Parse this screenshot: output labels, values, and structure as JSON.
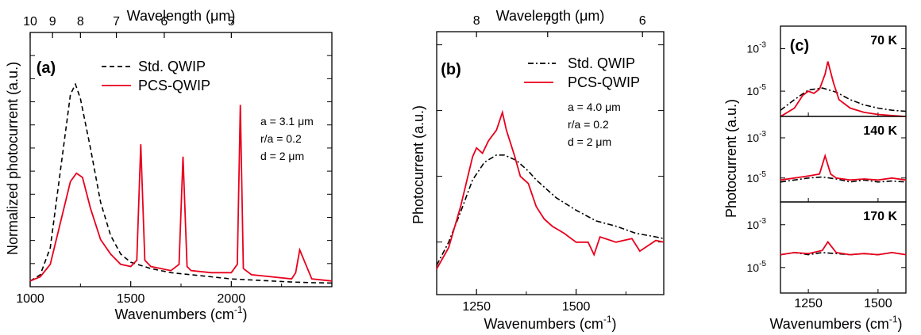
{
  "chart_data": [
    {
      "id": "a",
      "type": "line",
      "panel_label": "(a)",
      "xlabel": "Wavenumbers (cm",
      "xlabel_sup": "-1",
      "xlabel_close": ")",
      "ylabel": "Normalized photocurrent (a.u.)",
      "top_axis_label": "Wavelength (μm)",
      "xlim": [
        1000,
        2500
      ],
      "ylim": [
        0,
        1
      ],
      "x_ticks": [
        1000,
        1500,
        2000
      ],
      "x_tick_labels": [
        "1000",
        "1500",
        "2000"
      ],
      "top_ticks_um": [
        10,
        9,
        8,
        7,
        6,
        5
      ],
      "top_tick_labels": [
        "10",
        "9",
        "8",
        "7",
        "6",
        "5"
      ],
      "legend": [
        "Std. QWIP",
        "PCS-QWIP"
      ],
      "annotations": [
        "a = 3.1 μm",
        "r/a = 0.2",
        "d = 2 μm"
      ],
      "series": [
        {
          "name": "Std. QWIP",
          "style": "dashed",
          "color": "#000000",
          "x": [
            1000,
            1050,
            1100,
            1150,
            1200,
            1225,
            1250,
            1300,
            1350,
            1400,
            1450,
            1500,
            1600,
            1700,
            1800,
            1900,
            2000,
            2100,
            2200,
            2300,
            2400,
            2500
          ],
          "y": [
            0.02,
            0.05,
            0.18,
            0.55,
            0.92,
            0.97,
            0.9,
            0.66,
            0.4,
            0.24,
            0.15,
            0.11,
            0.08,
            0.06,
            0.05,
            0.04,
            0.03,
            0.025,
            0.02,
            0.015,
            0.012,
            0.01
          ]
        },
        {
          "name": "PCS-QWIP",
          "style": "solid",
          "color": "#e8001c",
          "x": [
            1000,
            1050,
            1100,
            1150,
            1200,
            1230,
            1260,
            1300,
            1350,
            1400,
            1450,
            1500,
            1530,
            1550,
            1570,
            1600,
            1700,
            1740,
            1760,
            1780,
            1800,
            1900,
            2000,
            2030,
            2045,
            2060,
            2100,
            2200,
            2300,
            2320,
            2340,
            2400,
            2500
          ],
          "y": [
            0.02,
            0.04,
            0.1,
            0.3,
            0.5,
            0.54,
            0.52,
            0.37,
            0.22,
            0.15,
            0.1,
            0.09,
            0.12,
            0.68,
            0.12,
            0.09,
            0.07,
            0.1,
            0.62,
            0.09,
            0.07,
            0.06,
            0.06,
            0.1,
            0.87,
            0.08,
            0.05,
            0.04,
            0.03,
            0.06,
            0.17,
            0.03,
            0.02
          ]
        }
      ]
    },
    {
      "id": "b",
      "type": "line",
      "panel_label": "(b)",
      "xlabel": "Wavenumbers (cm",
      "xlabel_sup": "-1",
      "xlabel_close": ")",
      "ylabel": "Photocurrent (a.u.)",
      "top_axis_label": "Wavelength (μm)",
      "xlim": [
        1150,
        1720
      ],
      "y_scale": "log",
      "x_ticks": [
        1250,
        1500
      ],
      "x_tick_labels": [
        "1250",
        "1500"
      ],
      "top_ticks_um": [
        8,
        7,
        6
      ],
      "top_tick_labels": [
        "8",
        "7",
        "6"
      ],
      "legend": [
        "Std. QWIP",
        "PCS-QWIP"
      ],
      "annotations": [
        "a = 4.0 μm",
        "r/a = 0.2",
        "d = 2 μm"
      ],
      "series": [
        {
          "name": "Std. QWIP",
          "style": "dashdot",
          "color": "#000000",
          "x": [
            1150,
            1180,
            1210,
            1240,
            1270,
            1300,
            1320,
            1350,
            1380,
            1400,
            1450,
            1500,
            1550,
            1600,
            1650,
            1700,
            1720
          ],
          "y": [
            0.12,
            0.25,
            0.42,
            0.6,
            0.7,
            0.74,
            0.74,
            0.71,
            0.65,
            0.6,
            0.5,
            0.43,
            0.37,
            0.34,
            0.3,
            0.28,
            0.27
          ]
        },
        {
          "name": "PCS-QWIP",
          "style": "solid",
          "color": "#e8001c",
          "x": [
            1150,
            1180,
            1210,
            1240,
            1250,
            1265,
            1280,
            1300,
            1315,
            1325,
            1345,
            1360,
            1380,
            1400,
            1420,
            1440,
            1470,
            1500,
            1530,
            1545,
            1560,
            1600,
            1640,
            1660,
            1700,
            1720
          ],
          "y": [
            0.1,
            0.22,
            0.45,
            0.73,
            0.78,
            0.75,
            0.82,
            0.88,
            0.98,
            0.88,
            0.74,
            0.62,
            0.58,
            0.45,
            0.38,
            0.34,
            0.3,
            0.25,
            0.25,
            0.18,
            0.28,
            0.25,
            0.27,
            0.2,
            0.26,
            0.25
          ]
        }
      ]
    },
    {
      "id": "c",
      "type": "line",
      "panel_label": "(c)",
      "xlabel": "Wavenumbers (cm",
      "xlabel_sup": "-1",
      "xlabel_close": ")",
      "ylabel": "Photocurrent (a.u.)",
      "xlim": [
        1150,
        1600
      ],
      "x_ticks": [
        1250,
        1500
      ],
      "x_tick_labels": [
        "1250",
        "1500"
      ],
      "y_scale": "log",
      "y_tick_labels": [
        "10",
        "10"
      ],
      "y_tick_exponents": [
        "-3",
        "-5"
      ],
      "subpanels": [
        {
          "label": "70 K",
          "series": [
            {
              "name": "Std. QWIP",
              "style": "dashdot",
              "color": "#000000",
              "x": [
                1150,
                1200,
                1250,
                1300,
                1350,
                1400,
                1450,
                1500,
                1550,
                1600
              ],
              "y": [
                -5.9,
                -5.4,
                -4.95,
                -4.85,
                -5.05,
                -5.4,
                -5.65,
                -5.8,
                -5.9,
                -5.95
              ]
            },
            {
              "name": "PCS-QWIP",
              "style": "solid",
              "color": "#e8001c",
              "x": [
                1150,
                1200,
                1230,
                1250,
                1270,
                1290,
                1310,
                1320,
                1340,
                1360,
                1400,
                1450,
                1500,
                1550,
                1600
              ],
              "y": [
                -6.2,
                -5.8,
                -5.2,
                -5.0,
                -5.1,
                -4.9,
                -4.2,
                -3.6,
                -4.6,
                -5.4,
                -5.8,
                -6.0,
                -6.1,
                -6.15,
                -6.2
              ]
            }
          ]
        },
        {
          "label": "140 K",
          "series": [
            {
              "name": "Std. QWIP",
              "style": "dashdot",
              "color": "#000000",
              "x": [
                1150,
                1200,
                1250,
                1300,
                1350,
                1400,
                1450,
                1500,
                1550,
                1600
              ],
              "y": [
                -5.2,
                -5.1,
                -5.0,
                -4.95,
                -5.05,
                -5.2,
                -5.1,
                -5.2,
                -5.15,
                -5.2
              ]
            },
            {
              "name": "PCS-QWIP",
              "style": "solid",
              "color": "#e8001c",
              "x": [
                1150,
                1200,
                1250,
                1290,
                1310,
                1330,
                1350,
                1400,
                1450,
                1500,
                1550,
                1600
              ],
              "y": [
                -5.1,
                -5.0,
                -4.9,
                -4.8,
                -3.9,
                -4.8,
                -5.0,
                -5.1,
                -5.05,
                -5.1,
                -5.0,
                -5.1
              ]
            }
          ]
        },
        {
          "label": "170 K",
          "series": [
            {
              "name": "Std. QWIP",
              "style": "dashdot",
              "color": "#000000",
              "x": [
                1150,
                1200,
                1250,
                1300,
                1350,
                1400,
                1450,
                1500,
                1550,
                1600
              ],
              "y": [
                -4.4,
                -4.3,
                -4.4,
                -4.3,
                -4.35,
                -4.4,
                -4.35,
                -4.4,
                -4.3,
                -4.4
              ]
            },
            {
              "name": "PCS-QWIP",
              "style": "solid",
              "color": "#e8001c",
              "x": [
                1150,
                1200,
                1250,
                1300,
                1320,
                1350,
                1400,
                1450,
                1500,
                1550,
                1600
              ],
              "y": [
                -4.4,
                -4.3,
                -4.35,
                -4.2,
                -3.8,
                -4.3,
                -4.4,
                -4.35,
                -4.4,
                -4.3,
                -4.4
              ]
            }
          ]
        }
      ]
    }
  ]
}
